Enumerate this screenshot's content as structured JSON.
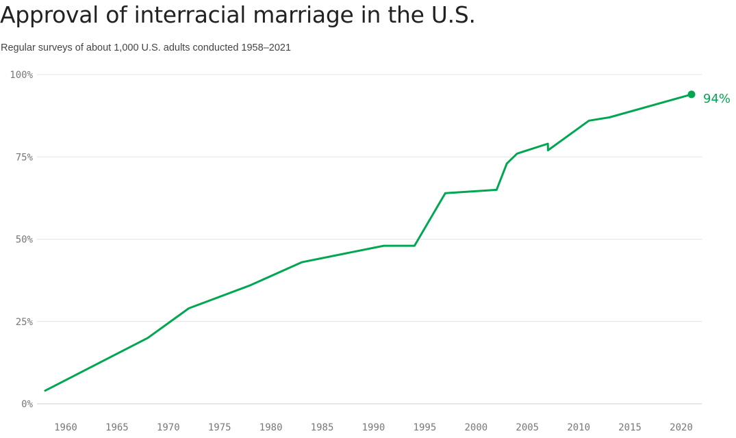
{
  "chart_data": {
    "type": "line",
    "title": "Approval of interracial marriage in the U.S.",
    "subtitle": "Regular surveys of about 1,000 U.S. adults conducted 1958–2021",
    "xlabel": "",
    "ylabel": "",
    "xlim": [
      1958,
      2022
    ],
    "ylim": [
      0,
      100
    ],
    "x_ticks": [
      1960,
      1965,
      1970,
      1975,
      1980,
      1985,
      1990,
      1995,
      2000,
      2005,
      2010,
      2015,
      2020
    ],
    "y_ticks": [
      {
        "value": 0,
        "label": "0%"
      },
      {
        "value": 25,
        "label": "25%"
      },
      {
        "value": 50,
        "label": "50%"
      },
      {
        "value": 75,
        "label": "75%"
      },
      {
        "value": 100,
        "label": "100%"
      }
    ],
    "grid": true,
    "series": [
      {
        "color": "#00a651",
        "x": [
          1958,
          1968,
          1972,
          1978,
          1983,
          1991,
          1994,
          1997,
          2002,
          2003,
          2004,
          2007,
          2007.01,
          2011,
          2013,
          2021
        ],
        "values": [
          4,
          20,
          29,
          36,
          43,
          48,
          48,
          64,
          65,
          73,
          76,
          79,
          77,
          86,
          87,
          94
        ]
      }
    ],
    "end_label": "94%"
  }
}
